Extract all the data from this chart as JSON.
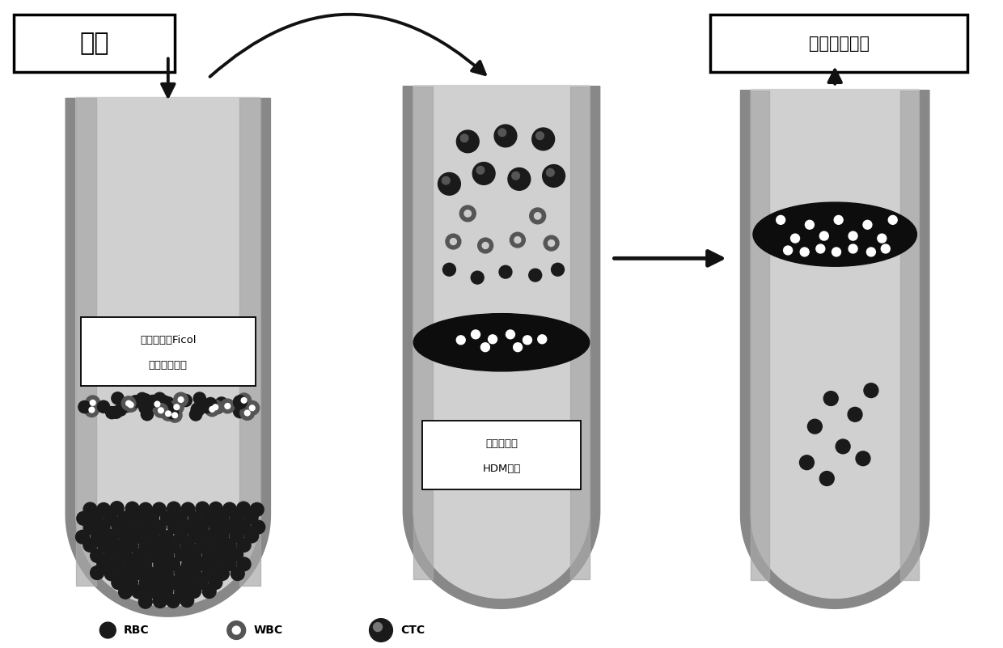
{
  "background_color": "#ffffff",
  "tube1_label_line1": "第一次分离Ficol",
  "tube1_label_line2": "血球分离溶液",
  "tube2_label_line1": "第二次纯化",
  "tube2_label_line2": "HDM滤网",
  "box1_label": "血液",
  "box3_label": "回收靶细胞组",
  "legend_rbc": "RBC",
  "legend_wbc": "WBC",
  "legend_ctc": "CTC",
  "tube_outer_color": "#888888",
  "tube_wall_color": "#999999",
  "tube_inner_color": "#d8d8d8",
  "tube_shading_color": "#b0b0b0",
  "dark_layer_color": "#111111",
  "rbc_color": "#1a1a1a",
  "wbc_color": "#666666",
  "ctc_color": "#2a2a2a",
  "text_color": "#000000",
  "arrow_color": "#111111",
  "box_facecolor": "#ffffff",
  "box_edgecolor": "#000000"
}
